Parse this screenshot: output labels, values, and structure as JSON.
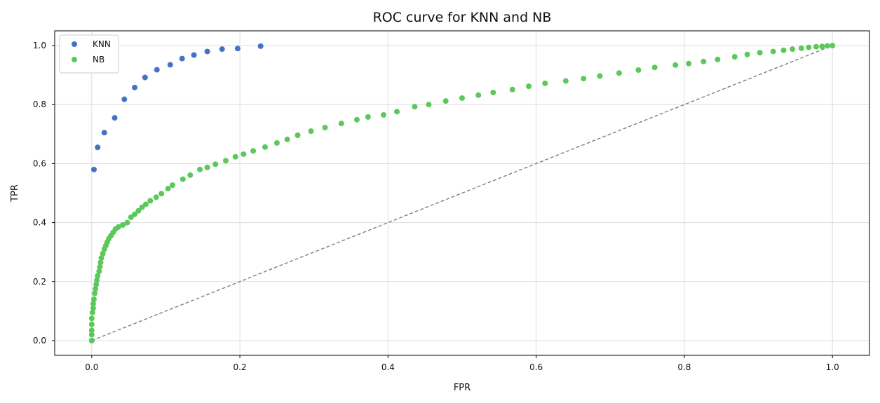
{
  "chart_data": {
    "type": "scatter",
    "title": "ROC curve for KNN and NB",
    "xlabel": "FPR",
    "ylabel": "TPR",
    "xlim": [
      -0.05,
      1.05
    ],
    "ylim": [
      -0.05,
      1.05
    ],
    "xticks": [
      0.0,
      0.2,
      0.4,
      0.6,
      0.8,
      1.0
    ],
    "yticks": [
      0.0,
      0.2,
      0.4,
      0.6,
      0.8,
      1.0
    ],
    "xtick_labels": [
      "0.0",
      "0.2",
      "0.4",
      "0.6",
      "0.8",
      "1.0"
    ],
    "ytick_labels": [
      "0.0",
      "0.2",
      "0.4",
      "0.6",
      "0.8",
      "1.0"
    ],
    "grid": true,
    "legend_position": "top-left",
    "reference_line": {
      "x": [
        0,
        1
      ],
      "y": [
        0,
        1
      ],
      "color": "#7f7f7f",
      "style": "dashed"
    },
    "series": [
      {
        "name": "KNN",
        "color": "#4472c4",
        "points": [
          [
            0.0,
            0.0
          ],
          [
            0.003,
            0.58
          ],
          [
            0.008,
            0.655
          ],
          [
            0.017,
            0.705
          ],
          [
            0.031,
            0.755
          ],
          [
            0.044,
            0.818
          ],
          [
            0.058,
            0.858
          ],
          [
            0.072,
            0.892
          ],
          [
            0.088,
            0.918
          ],
          [
            0.106,
            0.935
          ],
          [
            0.122,
            0.956
          ],
          [
            0.138,
            0.968
          ],
          [
            0.156,
            0.98
          ],
          [
            0.176,
            0.988
          ],
          [
            0.197,
            0.99
          ],
          [
            0.228,
            0.998
          ]
        ]
      },
      {
        "name": "NB",
        "color": "#5cc85c",
        "points": [
          [
            0.0,
            0.0
          ],
          [
            0.0,
            0.02
          ],
          [
            0.0,
            0.035
          ],
          [
            0.0,
            0.055
          ],
          [
            0.0,
            0.075
          ],
          [
            0.001,
            0.095
          ],
          [
            0.002,
            0.11
          ],
          [
            0.002,
            0.125
          ],
          [
            0.003,
            0.14
          ],
          [
            0.004,
            0.16
          ],
          [
            0.005,
            0.175
          ],
          [
            0.006,
            0.19
          ],
          [
            0.007,
            0.205
          ],
          [
            0.008,
            0.22
          ],
          [
            0.01,
            0.235
          ],
          [
            0.011,
            0.25
          ],
          [
            0.012,
            0.265
          ],
          [
            0.013,
            0.28
          ],
          [
            0.015,
            0.295
          ],
          [
            0.017,
            0.31
          ],
          [
            0.019,
            0.322
          ],
          [
            0.021,
            0.334
          ],
          [
            0.023,
            0.345
          ],
          [
            0.026,
            0.356
          ],
          [
            0.029,
            0.367
          ],
          [
            0.032,
            0.378
          ],
          [
            0.036,
            0.385
          ],
          [
            0.042,
            0.392
          ],
          [
            0.048,
            0.4
          ],
          [
            0.053,
            0.418
          ],
          [
            0.058,
            0.428
          ],
          [
            0.063,
            0.44
          ],
          [
            0.068,
            0.452
          ],
          [
            0.073,
            0.462
          ],
          [
            0.079,
            0.474
          ],
          [
            0.087,
            0.486
          ],
          [
            0.094,
            0.498
          ],
          [
            0.103,
            0.515
          ],
          [
            0.109,
            0.527
          ],
          [
            0.123,
            0.547
          ],
          [
            0.133,
            0.561
          ],
          [
            0.146,
            0.58
          ],
          [
            0.156,
            0.587
          ],
          [
            0.167,
            0.598
          ],
          [
            0.181,
            0.61
          ],
          [
            0.194,
            0.623
          ],
          [
            0.205,
            0.632
          ],
          [
            0.218,
            0.643
          ],
          [
            0.234,
            0.656
          ],
          [
            0.25,
            0.67
          ],
          [
            0.264,
            0.682
          ],
          [
            0.278,
            0.696
          ],
          [
            0.296,
            0.71
          ],
          [
            0.315,
            0.722
          ],
          [
            0.337,
            0.736
          ],
          [
            0.358,
            0.749
          ],
          [
            0.373,
            0.758
          ],
          [
            0.394,
            0.765
          ],
          [
            0.412,
            0.776
          ],
          [
            0.436,
            0.793
          ],
          [
            0.455,
            0.8
          ],
          [
            0.478,
            0.812
          ],
          [
            0.5,
            0.822
          ],
          [
            0.522,
            0.832
          ],
          [
            0.542,
            0.841
          ],
          [
            0.568,
            0.851
          ],
          [
            0.59,
            0.862
          ],
          [
            0.612,
            0.872
          ],
          [
            0.64,
            0.88
          ],
          [
            0.664,
            0.888
          ],
          [
            0.686,
            0.897
          ],
          [
            0.712,
            0.907
          ],
          [
            0.738,
            0.917
          ],
          [
            0.76,
            0.926
          ],
          [
            0.788,
            0.934
          ],
          [
            0.806,
            0.939
          ],
          [
            0.826,
            0.946
          ],
          [
            0.845,
            0.953
          ],
          [
            0.868,
            0.962
          ],
          [
            0.885,
            0.97
          ],
          [
            0.902,
            0.976
          ],
          [
            0.92,
            0.98
          ],
          [
            0.934,
            0.984
          ],
          [
            0.946,
            0.988
          ],
          [
            0.958,
            0.991
          ],
          [
            0.968,
            0.994
          ],
          [
            0.978,
            0.996
          ],
          [
            0.986,
            0.997
          ],
          [
            0.993,
            0.999
          ],
          [
            1.0,
            1.0
          ]
        ]
      }
    ]
  }
}
